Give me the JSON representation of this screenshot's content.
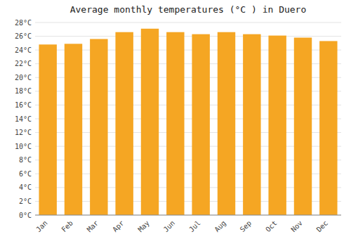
{
  "chart_data": {
    "type": "bar",
    "title": "Average monthly temperatures (°C ) in Duero",
    "categories": [
      "Jan",
      "Feb",
      "Mar",
      "Apr",
      "May",
      "Jun",
      "Jul",
      "Aug",
      "Sep",
      "Oct",
      "Nov",
      "Dec"
    ],
    "values": [
      24.8,
      24.9,
      25.6,
      26.6,
      27.1,
      26.6,
      26.3,
      26.6,
      26.3,
      26.1,
      25.8,
      25.3
    ],
    "color": "#F5A623",
    "ylim": [
      0,
      28
    ],
    "yticks": [
      {
        "value": 0,
        "label": "0°C"
      },
      {
        "value": 2,
        "label": "2°C"
      },
      {
        "value": 4,
        "label": "4°C"
      },
      {
        "value": 6,
        "label": "6°C"
      },
      {
        "value": 8,
        "label": "8°C"
      },
      {
        "value": 10,
        "label": "10°C"
      },
      {
        "value": 12,
        "label": "12°C"
      },
      {
        "value": 14,
        "label": "14°C"
      },
      {
        "value": 16,
        "label": "16°C"
      },
      {
        "value": 18,
        "label": "18°C"
      },
      {
        "value": 20,
        "label": "20°C"
      },
      {
        "value": 22,
        "label": "22°C"
      },
      {
        "value": 24,
        "label": "24°C"
      },
      {
        "value": 26,
        "label": "26°C"
      },
      {
        "value": 28,
        "label": "28°C"
      }
    ],
    "grid": true
  }
}
